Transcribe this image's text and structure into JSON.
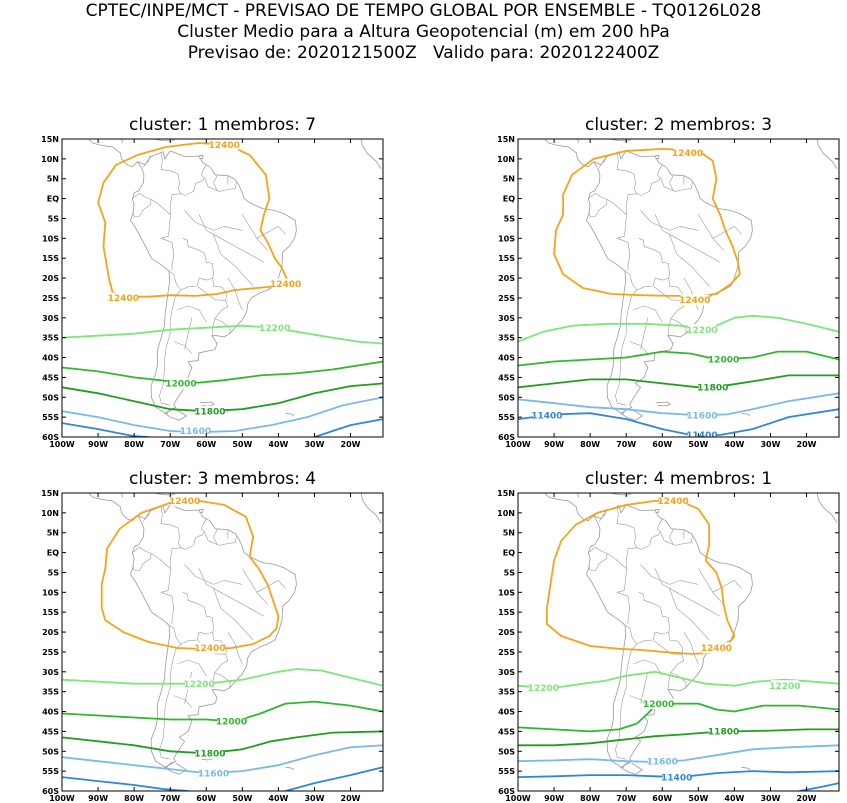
{
  "header": {
    "line1": "CPTEC/INPE/MCT - PREVISAO DE TEMPO GLOBAL POR ENSEMBLE - TQ0126L028",
    "line2": "Cluster Medio para a Altura Geopotencial (m) em 200 hPa",
    "line3": "Previsao de: 2020121500Z   Valido para: 2020122400Z"
  },
  "axes": {
    "lat_labels": [
      "15N",
      "10N",
      "5N",
      "EQ",
      "5S",
      "10S",
      "15S",
      "20S",
      "25S",
      "30S",
      "35S",
      "40S",
      "45S",
      "50S",
      "55S",
      "60S"
    ],
    "lon_labels": [
      "100W",
      "90W",
      "80W",
      "70W",
      "60W",
      "50W",
      "40W",
      "30W",
      "20W"
    ]
  },
  "colors": {
    "12400": "#f5a31a",
    "12200": "#7ee67a",
    "12000": "#2db82d",
    "11800": "#1f9e1f",
    "11600": "#7ab8ee",
    "11400": "#2f86dd",
    "coast": "#9a9a9a"
  },
  "panels": [
    {
      "title": "cluster: 1   membros: 7",
      "contours": [
        {
          "level": "12400",
          "label": "12400",
          "labels": [
            {
              "lon": -55,
              "lat": 13.5
            },
            {
              "lon": -83,
              "lat": -25
            },
            {
              "lon": -38,
              "lat": -21.5
            }
          ]
        },
        {
          "level": "12200",
          "label": "12200",
          "labels": [
            {
              "lon": -41,
              "lat": -32.5
            }
          ]
        },
        {
          "level": "12000",
          "label": "12000",
          "labels": [
            {
              "lon": -67,
              "lat": -46.5
            }
          ]
        },
        {
          "level": "11800",
          "label": "11800",
          "labels": [
            {
              "lon": -59,
              "lat": -53.5
            }
          ]
        },
        {
          "level": "11600",
          "label": "11600",
          "labels": [
            {
              "lon": -63,
              "lat": -58.5
            }
          ]
        }
      ]
    },
    {
      "title": "cluster: 2   membros: 3",
      "contours": [
        {
          "level": "12400",
          "label": "12400",
          "labels": [
            {
              "lon": -53,
              "lat": 11.5
            },
            {
              "lon": -51,
              "lat": -25.5
            }
          ]
        },
        {
          "level": "12200",
          "label": "12200",
          "labels": [
            {
              "lon": -49,
              "lat": -33
            }
          ]
        },
        {
          "level": "12000",
          "label": "12000",
          "labels": [
            {
              "lon": -43,
              "lat": -40.5
            }
          ]
        },
        {
          "level": "11800",
          "label": "11800",
          "labels": [
            {
              "lon": -46,
              "lat": -47.5
            }
          ]
        },
        {
          "level": "11600",
          "label": "11600",
          "labels": [
            {
              "lon": -49,
              "lat": -54.5
            }
          ]
        },
        {
          "level": "11400",
          "label": "11400",
          "labels": [
            {
              "lon": -92,
              "lat": -54.5
            },
            {
              "lon": -49,
              "lat": -59.5
            }
          ]
        }
      ]
    },
    {
      "title": "cluster: 3   membros: 4",
      "contours": [
        {
          "level": "12400",
          "label": "12400",
          "labels": [
            {
              "lon": -66,
              "lat": 13
            },
            {
              "lon": -59,
              "lat": -24
            }
          ]
        },
        {
          "level": "12200",
          "label": "12200",
          "labels": [
            {
              "lon": -62,
              "lat": -33
            }
          ]
        },
        {
          "level": "12000",
          "label": "12000",
          "labels": [
            {
              "lon": -53,
              "lat": -42.5
            }
          ]
        },
        {
          "level": "11800",
          "label": "11800",
          "labels": [
            {
              "lon": -59,
              "lat": -50.5
            }
          ]
        },
        {
          "level": "11600",
          "label": "11600",
          "labels": [
            {
              "lon": -58,
              "lat": -55.5
            }
          ]
        }
      ]
    },
    {
      "title": "cluster: 4   membros: 1",
      "contours": [
        {
          "level": "12400",
          "label": "12400",
          "labels": [
            {
              "lon": -57,
              "lat": 13
            },
            {
              "lon": -45,
              "lat": -24
            }
          ]
        },
        {
          "level": "12200",
          "label": "12200",
          "labels": [
            {
              "lon": -93,
              "lat": -34
            },
            {
              "lon": -26,
              "lat": -33.5
            }
          ]
        },
        {
          "level": "12000",
          "label": "12000",
          "labels": [
            {
              "lon": -61,
              "lat": -38
            }
          ]
        },
        {
          "level": "11800",
          "label": "11800",
          "labels": [
            {
              "lon": -43,
              "lat": -45
            }
          ]
        },
        {
          "level": "11600",
          "label": "11600",
          "labels": [
            {
              "lon": -60,
              "lat": -52.5
            }
          ]
        },
        {
          "level": "11400",
          "label": "11400",
          "labels": [
            {
              "lon": -56,
              "lat": -56.5
            }
          ]
        }
      ]
    }
  ]
}
